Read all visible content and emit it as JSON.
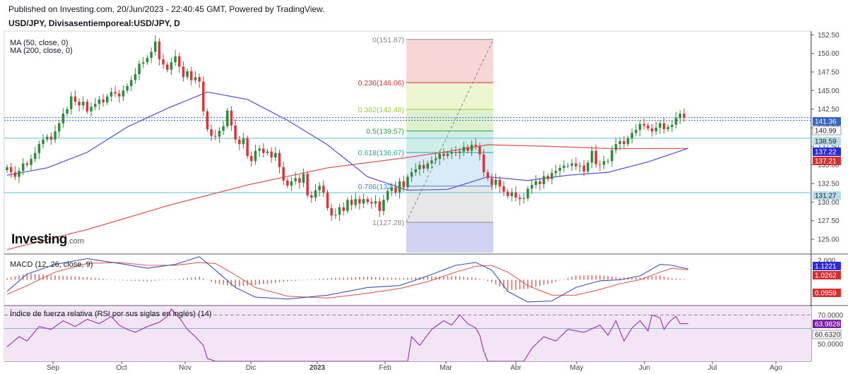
{
  "header": {
    "published": "Published on Investing.com, 20/Jun/2023 - 22:40:45 GMT, Powered by TradingView.",
    "symbol": "USD/JPY, Divisasentiemporeal:USD/JPY, D",
    "ma50_label": "MA (50, close, 0)",
    "ma200_label": "MA (200, close, 0)",
    "logo_main": "Investing",
    "logo_suffix": ".com"
  },
  "colors": {
    "up": "#26a69a",
    "down": "#ef5350",
    "candle_up": "#2e8b3a",
    "candle_down": "#d23a3a",
    "ma50": "#5b5bd6",
    "ma200": "#e05a5a",
    "macd": "#3f51b5",
    "signal": "#e35b5b",
    "rsi": "#9c27b0",
    "rsi_band": "#f3e5f5",
    "price_tag": "#2962ff",
    "support": "#5bc0de"
  },
  "chart_data": [
    {
      "type": "candlestick",
      "title": "USD/JPY, Divisasentiemporeal:USD/JPY, D",
      "ylim": [
        123.2,
        153.0
      ],
      "yticks": [
        "152.50",
        "150.00",
        "147.50",
        "145.00",
        "142.50",
        "140.00",
        "137.50",
        "135.00",
        "132.50",
        "130.00",
        "127.50",
        "125.00"
      ],
      "x_labels": [
        "Sep",
        "Oct",
        "Nov",
        "Dic",
        "2023",
        "Feb",
        "Mar",
        "Abr",
        "May",
        "Jun",
        "Jul",
        "Ago"
      ],
      "price_tags": [
        {
          "value": "141.36",
          "kind": "last"
        },
        {
          "value": "140.99",
          "kind": "plain"
        },
        {
          "value": "138.59",
          "kind": "line"
        },
        {
          "value": "137.22",
          "kind": "ma50"
        },
        {
          "value": "137.21",
          "kind": "ma200"
        },
        {
          "value": "131.27",
          "kind": "line"
        }
      ],
      "horizontal_lines": [
        138.59,
        131.27
      ],
      "fibonacci": {
        "high": 151.87,
        "low": 127.28,
        "levels": [
          {
            "ratio": "0",
            "label": "0(151.87)",
            "price": 151.87,
            "color": "#888888"
          },
          {
            "ratio": "0.236",
            "label": "0.236(146.06)",
            "price": 146.06,
            "color": "#d32f2f"
          },
          {
            "ratio": "0.382",
            "label": "0.382(142.48)",
            "price": 142.48,
            "color": "#9acd32"
          },
          {
            "ratio": "0.5",
            "label": "0.5(139.57)",
            "price": 139.57,
            "color": "#2e9d48"
          },
          {
            "ratio": "0.618",
            "label": "0.618(136.67)",
            "price": 136.67,
            "color": "#26a69a"
          },
          {
            "ratio": "0.786",
            "label": "0.786(132.14)",
            "price": 132.14,
            "color": "#3d8bd4"
          },
          {
            "ratio": "1",
            "label": "1(127.28)",
            "price": 127.28,
            "color": "#888888"
          }
        ]
      },
      "series": [
        {
          "name": "USD/JPY",
          "kind": "candles",
          "closes": [
            134.7,
            134.0,
            133.4,
            134.2,
            135.2,
            135.0,
            135.8,
            136.6,
            137.8,
            138.4,
            138.8,
            138.4,
            139.5,
            140.6,
            141.9,
            142.5,
            144.2,
            143.5,
            143.0,
            143.5,
            142.2,
            142.8,
            143.2,
            143.8,
            143.4,
            144.2,
            144.8,
            144.6,
            144.2,
            145.0,
            145.6,
            146.4,
            147.2,
            148.6,
            148.8,
            149.4,
            150.2,
            151.6,
            149.2,
            148.5,
            147.8,
            148.8,
            149.6,
            148.2,
            146.8,
            147.6,
            146.4,
            146.8,
            146.2,
            142.2,
            139.8,
            138.9,
            138.8,
            139.6,
            140.2,
            142.3,
            140.3,
            138.4,
            137.8,
            138.6,
            136.2,
            135.5,
            136.9,
            137.2,
            136.6,
            136.8,
            136.0,
            136.6,
            134.7,
            132.9,
            132.2,
            132.8,
            133.2,
            132.6,
            133.8,
            130.9,
            130.6,
            131.6,
            132.2,
            131.3,
            129.2,
            128.2,
            128.3,
            129.3,
            128.8,
            130.3,
            129.6,
            130.4,
            129.8,
            130.4,
            130.0,
            129.8,
            130.1,
            128.8,
            130.3,
            131.5,
            132.0,
            131.3,
            132.8,
            132.0,
            133.4,
            134.0,
            134.4,
            135.0,
            134.5,
            135.2,
            135.6,
            135.8,
            136.5,
            136.2,
            136.5,
            136.7,
            136.6,
            136.8,
            137.4,
            136.9,
            137.7,
            137.5,
            136.4,
            134.0,
            133.2,
            132.3,
            133.0,
            132.1,
            131.4,
            130.8,
            131.3,
            130.6,
            130.4,
            130.5,
            131.8,
            132.3,
            132.8,
            132.4,
            133.5,
            133.1,
            133.9,
            134.2,
            134.6,
            134.9,
            134.9,
            135.2,
            134.8,
            134.9,
            134.1,
            135.3,
            136.9,
            135.1,
            135.0,
            135.5,
            135.5,
            137.0,
            137.8,
            138.2,
            137.8,
            138.6,
            139.3,
            139.7,
            140.5,
            140.3,
            139.9,
            139.5,
            140.0,
            140.6,
            139.8,
            140.1,
            140.4,
            141.3,
            141.9,
            141.36
          ]
        },
        {
          "name": "MA (50, close, 0)",
          "kind": "line",
          "points": [
            [
              0,
              133.6
            ],
            [
              10,
              134.6
            ],
            [
              20,
              136.7
            ],
            [
              30,
              140.1
            ],
            [
              40,
              142.6
            ],
            [
              50,
              144.8
            ],
            [
              60,
              143.8
            ],
            [
              70,
              141.0
            ],
            [
              80,
              137.7
            ],
            [
              90,
              133.4
            ],
            [
              100,
              131.6
            ],
            [
              110,
              131.7
            ],
            [
              120,
              133.4
            ],
            [
              130,
              132.9
            ],
            [
              140,
              133.6
            ],
            [
              150,
              134.0
            ],
            [
              160,
              135.4
            ],
            [
              170,
              137.22
            ]
          ]
        },
        {
          "name": "MA (200, close, 0)",
          "kind": "line",
          "points": [
            [
              0,
              123.6
            ],
            [
              20,
              126.3
            ],
            [
              40,
              129.5
            ],
            [
              60,
              132.3
            ],
            [
              80,
              134.6
            ],
            [
              100,
              136.0
            ],
            [
              110,
              136.8
            ],
            [
              120,
              137.7
            ],
            [
              135,
              137.5
            ],
            [
              150,
              137.2
            ],
            [
              170,
              137.21
            ]
          ]
        }
      ]
    },
    {
      "type": "line",
      "title": "MACD (12, 26, close, 9)",
      "ylim": [
        -2.6,
        2.6
      ],
      "yticks": [
        "2.000"
      ],
      "tags": [
        {
          "value": "1.1221",
          "kind": "macd"
        },
        {
          "value": "1.0262",
          "kind": "signal"
        },
        {
          "value": "0.0959",
          "kind": "hist"
        }
      ],
      "series": [
        {
          "name": "MACD",
          "points": [
            [
              0,
              -1.2
            ],
            [
              5,
              0.6
            ],
            [
              12,
              1.6
            ],
            [
              20,
              2.2
            ],
            [
              28,
              1.7
            ],
            [
              35,
              1.2
            ],
            [
              42,
              1.6
            ],
            [
              48,
              2.4
            ],
            [
              52,
              1.0
            ],
            [
              57,
              -0.8
            ],
            [
              62,
              -1.8
            ],
            [
              70,
              -2.0
            ],
            [
              80,
              -1.6
            ],
            [
              90,
              -0.8
            ],
            [
              98,
              -0.6
            ],
            [
              105,
              0.4
            ],
            [
              112,
              1.5
            ],
            [
              117,
              1.8
            ],
            [
              121,
              1.0
            ],
            [
              125,
              -1.2
            ],
            [
              130,
              -2.3
            ],
            [
              136,
              -2.2
            ],
            [
              142,
              -0.8
            ],
            [
              148,
              -0.1
            ],
            [
              153,
              0.0
            ],
            [
              158,
              0.4
            ],
            [
              163,
              1.6
            ],
            [
              166,
              1.5
            ],
            [
              170,
              1.1221
            ]
          ]
        },
        {
          "name": "Signal",
          "points": [
            [
              0,
              -1.5
            ],
            [
              5,
              -0.6
            ],
            [
              12,
              0.8
            ],
            [
              20,
              1.7
            ],
            [
              28,
              1.8
            ],
            [
              35,
              1.5
            ],
            [
              42,
              1.5
            ],
            [
              48,
              1.8
            ],
            [
              52,
              1.7
            ],
            [
              57,
              0.5
            ],
            [
              62,
              -0.8
            ],
            [
              70,
              -1.7
            ],
            [
              80,
              -1.9
            ],
            [
              90,
              -1.4
            ],
            [
              98,
              -0.9
            ],
            [
              105,
              -0.2
            ],
            [
              112,
              0.8
            ],
            [
              117,
              1.4
            ],
            [
              121,
              1.5
            ],
            [
              125,
              0.8
            ],
            [
              130,
              -0.6
            ],
            [
              136,
              -1.6
            ],
            [
              142,
              -1.6
            ],
            [
              148,
              -1.0
            ],
            [
              153,
              -0.4
            ],
            [
              158,
              0.0
            ],
            [
              163,
              0.8
            ],
            [
              166,
              1.2
            ],
            [
              170,
              1.0262
            ]
          ]
        }
      ]
    },
    {
      "type": "line",
      "title": "Índice de fuerza relativa (RSI por sus siglas en inglés) (14)",
      "ylim": [
        38,
        76
      ],
      "yticks": [
        "70.0000",
        "50.0000"
      ],
      "reference_level": 70,
      "tags": [
        {
          "value": "63.9828",
          "kind": "rsi"
        },
        {
          "value": "60.6320",
          "kind": "plain"
        }
      ],
      "series": [
        {
          "name": "RSI",
          "points": [
            [
              0,
              48
            ],
            [
              3,
              55
            ],
            [
              5,
              52
            ],
            [
              8,
              62
            ],
            [
              11,
              60
            ],
            [
              14,
              66
            ],
            [
              17,
              62
            ],
            [
              20,
              67
            ],
            [
              23,
              64
            ],
            [
              26,
              69
            ],
            [
              28,
              63
            ],
            [
              30,
              60
            ],
            [
              32,
              58
            ],
            [
              35,
              62
            ],
            [
              38,
              65
            ],
            [
              40,
              69
            ],
            [
              41,
              74
            ],
            [
              43,
              68
            ],
            [
              45,
              60
            ],
            [
              47,
              55
            ],
            [
              49,
              49
            ],
            [
              50,
              40
            ],
            [
              52,
              38
            ],
            [
              56,
              38
            ],
            [
              100,
              38
            ],
            [
              101,
              55
            ],
            [
              103,
              49
            ],
            [
              106,
              60
            ],
            [
              109,
              66
            ],
            [
              111,
              63
            ],
            [
              113,
              70
            ],
            [
              115,
              64
            ],
            [
              117,
              61
            ],
            [
              118,
              56
            ],
            [
              119,
              45
            ],
            [
              120,
              38
            ],
            [
              129,
              38
            ],
            [
              131,
              47
            ],
            [
              134,
              55
            ],
            [
              137,
              52
            ],
            [
              140,
              60
            ],
            [
              144,
              58
            ],
            [
              148,
              63
            ],
            [
              150,
              56
            ],
            [
              152,
              66
            ],
            [
              154,
              52
            ],
            [
              156,
              61
            ],
            [
              158,
              66
            ],
            [
              160,
              59
            ],
            [
              161,
              70
            ],
            [
              163,
              68
            ],
            [
              164,
              60
            ],
            [
              165,
              64
            ],
            [
              166,
              67
            ],
            [
              167,
              69
            ],
            [
              168,
              64
            ],
            [
              170,
              63.98
            ]
          ]
        }
      ]
    }
  ]
}
